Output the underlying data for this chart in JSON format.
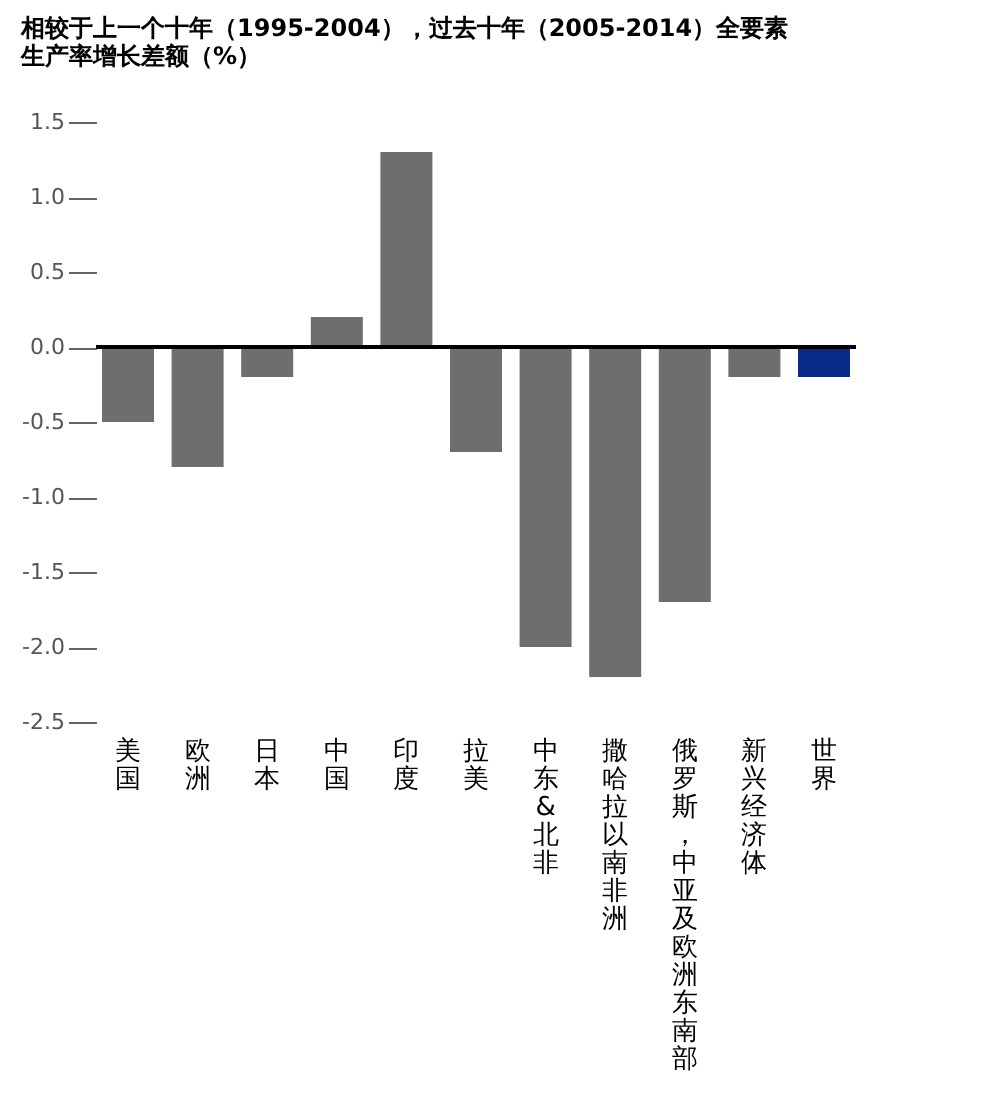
{
  "chart_data": {
    "type": "bar",
    "title": "相较于上一个十年（1995-2004），过去十年（2005-2014）全要素生产率增长差额（%）",
    "categories": [
      "美国",
      "欧洲",
      "日本",
      "中国",
      "印度",
      "拉美",
      "中东&北非",
      "撒哈拉以南非洲",
      "俄罗斯，中亚及欧洲东南部",
      "新兴经济体",
      "世界"
    ],
    "values": [
      -0.5,
      -0.8,
      -0.2,
      0.2,
      1.3,
      -0.7,
      -2.0,
      -2.2,
      -1.7,
      -0.2,
      -0.2
    ],
    "colors": [
      "#6e6e6e",
      "#6e6e6e",
      "#6e6e6e",
      "#6e6e6e",
      "#6e6e6e",
      "#6e6e6e",
      "#6e6e6e",
      "#6e6e6e",
      "#6e6e6e",
      "#6e6e6e",
      "#0a2a8a"
    ],
    "ylim": [
      -2.5,
      1.5
    ],
    "yticks": [
      -2.5,
      {
        "value": -2,
        "label": "-2.0"
      },
      -1.5,
      {
        "value": -1,
        "label": "-1.0"
      },
      -0.5,
      {
        "value": 0,
        "label": "0.0"
      },
      0.5,
      {
        "value": 1,
        "label": "1.0"
      },
      1.5
    ],
    "ref_lines": [
      {
        "axis": "y",
        "value": 0,
        "color": "#000000"
      }
    ],
    "grid": false
  }
}
